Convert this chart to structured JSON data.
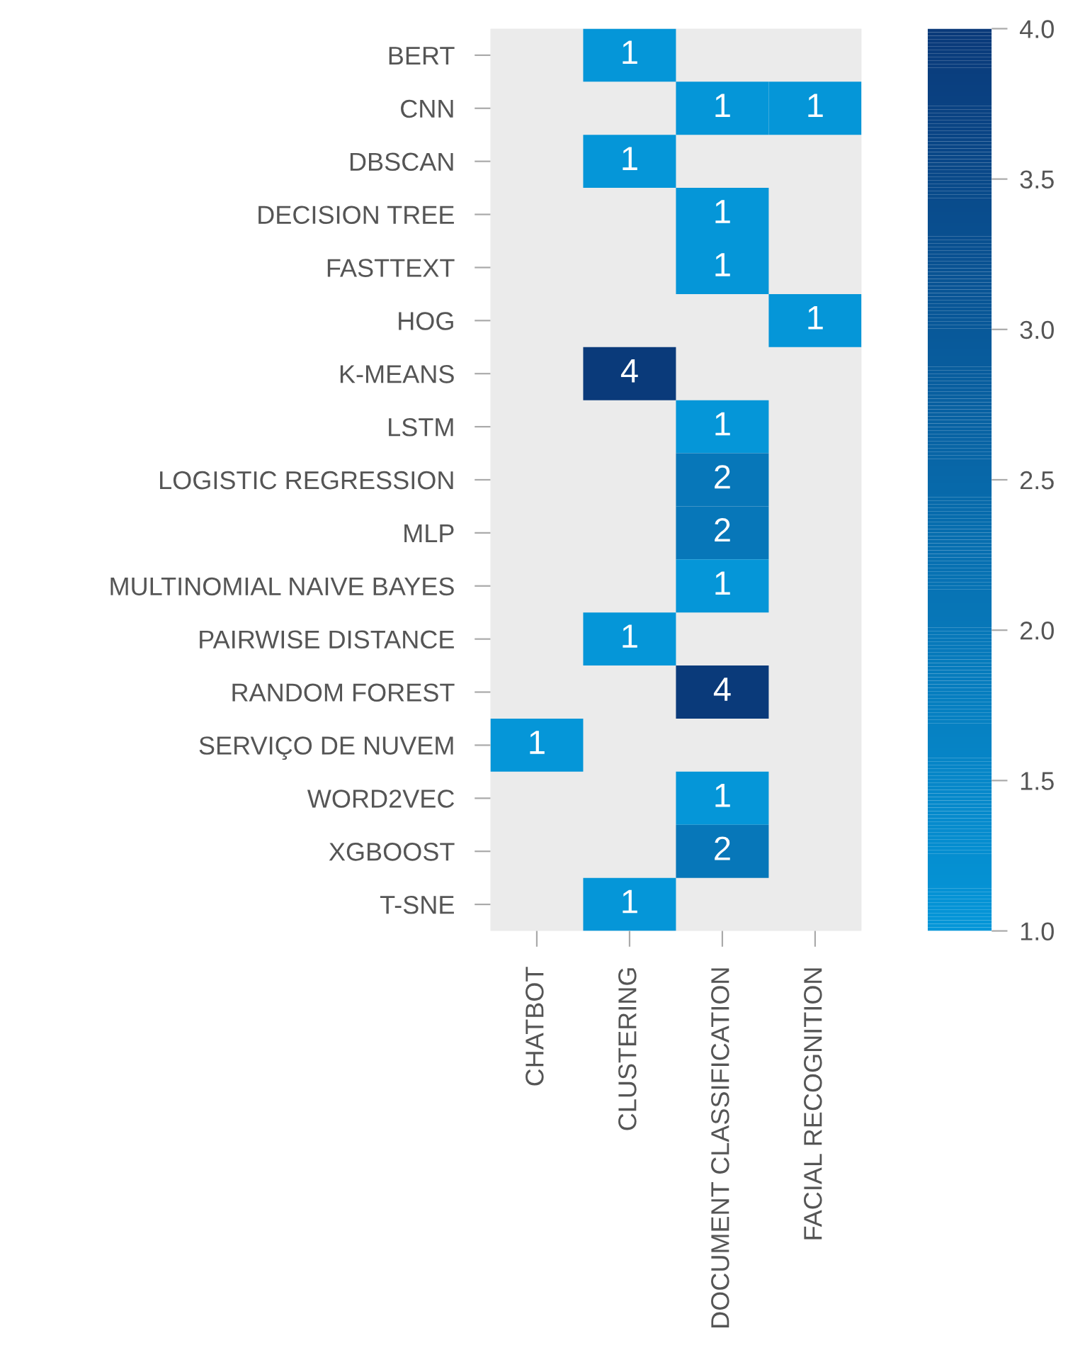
{
  "chart_data": {
    "type": "heatmap",
    "categories": [
      "CHATBOT",
      "CLUSTERING",
      "DOCUMENT CLASSIFICATION",
      "FACIAL RECOGNITION"
    ],
    "y_categories": [
      "BERT",
      "CNN",
      "DBSCAN",
      "DECISION TREE",
      "FASTTEXT",
      "HOG",
      "K-MEANS",
      "LSTM",
      "LOGISTIC REGRESSION",
      "MLP",
      "MULTINOMIAL NAIVE BAYES",
      "PAIRWISE DISTANCE",
      "RANDOM FOREST",
      "SERVIÇO DE NUVEM",
      "WORD2VEC",
      "XGBOOST",
      "T-SNE"
    ],
    "cells": [
      [
        null,
        1,
        null,
        null
      ],
      [
        null,
        null,
        1,
        1
      ],
      [
        null,
        1,
        null,
        null
      ],
      [
        null,
        null,
        1,
        null
      ],
      [
        null,
        null,
        1,
        null
      ],
      [
        null,
        null,
        null,
        1
      ],
      [
        null,
        4,
        null,
        null
      ],
      [
        null,
        null,
        1,
        null
      ],
      [
        null,
        null,
        2,
        null
      ],
      [
        null,
        null,
        2,
        null
      ],
      [
        null,
        null,
        1,
        null
      ],
      [
        null,
        1,
        null,
        null
      ],
      [
        null,
        null,
        4,
        null
      ],
      [
        1,
        null,
        null,
        null
      ],
      [
        null,
        null,
        1,
        null
      ],
      [
        null,
        null,
        2,
        null
      ],
      [
        null,
        1,
        null,
        null
      ]
    ],
    "clim": [
      1,
      4
    ],
    "cticks": [
      {
        "value": 1,
        "label": "1.0"
      },
      {
        "value": 1.5,
        "label": "1.5"
      },
      {
        "value": 2,
        "label": "2.0"
      },
      {
        "value": 2.5,
        "label": "2.5"
      },
      {
        "value": 3,
        "label": "3.0"
      },
      {
        "value": 3.5,
        "label": "3.5"
      },
      {
        "value": 4,
        "label": "4.0"
      }
    ],
    "data_labels": true,
    "grid": false
  }
}
